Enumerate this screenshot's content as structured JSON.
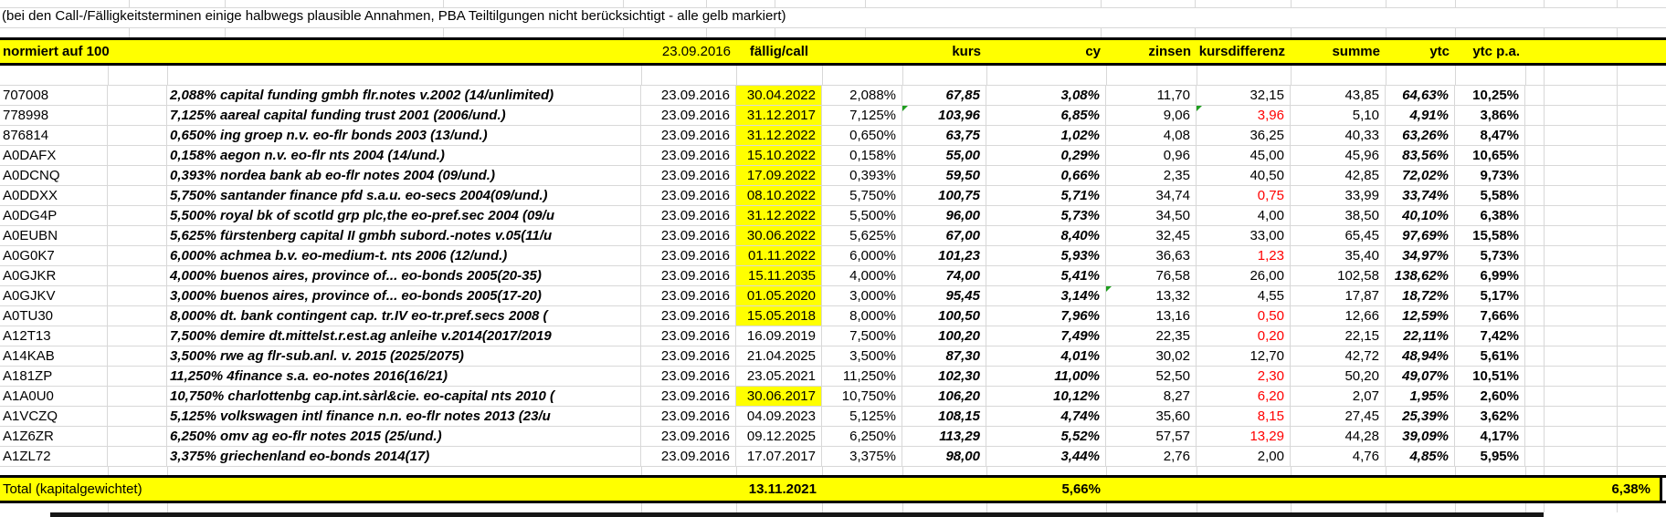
{
  "note": "(bei den Call-/Fälligkeitsterminen einige halbwegs plausible Annahmen, PBA Teiltilgungen nicht berücksichtigt  - alle gelb markiert)",
  "header": {
    "label": "normiert auf 100",
    "date": "23.09.2016",
    "faellig": "fällig/call",
    "kurs": "kurs",
    "cy": "cy",
    "zinsen": "zinsen",
    "kursdiff": "kursdifferenz",
    "summe": "summe",
    "ytc": "ytc",
    "ytc_pa": "ytc p.a."
  },
  "rows": [
    {
      "id": "707008",
      "name": "2,088% capital funding gmbh flr.notes v.2002 (14/unlimited)",
      "date": "23.09.2016",
      "faellig": "30.04.2022",
      "highlight": true,
      "coupon": "2,088%",
      "kurs": "67,85",
      "cy": "3,08%",
      "zinsen": "11,70",
      "kursdiff": "32,15",
      "negative": false,
      "summe": "43,85",
      "ytc": "64,63%",
      "ytc_pa": "10,25%",
      "indicators": []
    },
    {
      "id": "778998",
      "name": "7,125% aareal capital funding trust 2001 (2006/und.)",
      "date": "23.09.2016",
      "faellig": "31.12.2017",
      "highlight": true,
      "coupon": "7,125%",
      "kurs": "103,96",
      "cy": "6,85%",
      "zinsen": "9,06",
      "kursdiff": "3,96",
      "negative": true,
      "summe": "5,10",
      "ytc": "4,91%",
      "ytc_pa": "3,86%",
      "indicators": [
        "kurs",
        "kursdiff"
      ]
    },
    {
      "id": "876814",
      "name": "0,650% ing groep n.v. eo-flr bonds 2003 (13/und.)",
      "date": "23.09.2016",
      "faellig": "31.12.2022",
      "highlight": true,
      "coupon": "0,650%",
      "kurs": "63,75",
      "cy": "1,02%",
      "zinsen": "4,08",
      "kursdiff": "36,25",
      "negative": false,
      "summe": "40,33",
      "ytc": "63,26%",
      "ytc_pa": "8,47%",
      "indicators": []
    },
    {
      "id": "A0DAFX",
      "name": "0,158% aegon n.v. eo-flr nts 2004 (14/und.)",
      "date": "23.09.2016",
      "faellig": "15.10.2022",
      "highlight": true,
      "coupon": "0,158%",
      "kurs": "55,00",
      "cy": "0,29%",
      "zinsen": "0,96",
      "kursdiff": "45,00",
      "negative": false,
      "summe": "45,96",
      "ytc": "83,56%",
      "ytc_pa": "10,65%",
      "indicators": []
    },
    {
      "id": "A0DCNQ",
      "name": "0,393% nordea bank ab eo-flr notes 2004 (09/und.)",
      "date": "23.09.2016",
      "faellig": "17.09.2022",
      "highlight": true,
      "coupon": "0,393%",
      "kurs": "59,50",
      "cy": "0,66%",
      "zinsen": "2,35",
      "kursdiff": "40,50",
      "negative": false,
      "summe": "42,85",
      "ytc": "72,02%",
      "ytc_pa": "9,73%",
      "indicators": []
    },
    {
      "id": "A0DDXX",
      "name": "5,750% santander finance pfd s.a.u. eo-secs 2004(09/und.)",
      "date": "23.09.2016",
      "faellig": "08.10.2022",
      "highlight": true,
      "coupon": "5,750%",
      "kurs": "100,75",
      "cy": "5,71%",
      "zinsen": "34,74",
      "kursdiff": "0,75",
      "negative": true,
      "summe": "33,99",
      "ytc": "33,74%",
      "ytc_pa": "5,58%",
      "indicators": []
    },
    {
      "id": "A0DG4P",
      "name": "5,500% royal bk of scotld grp plc,the eo-pref.sec 2004 (09/u",
      "date": "23.09.2016",
      "faellig": "31.12.2022",
      "highlight": true,
      "coupon": "5,500%",
      "kurs": "96,00",
      "cy": "5,73%",
      "zinsen": "34,50",
      "kursdiff": "4,00",
      "negative": false,
      "summe": "38,50",
      "ytc": "40,10%",
      "ytc_pa": "6,38%",
      "indicators": []
    },
    {
      "id": "A0EUBN",
      "name": "5,625% fürstenberg capital II gmbh subord.-notes v.05(11/u",
      "date": "23.09.2016",
      "faellig": "30.06.2022",
      "highlight": true,
      "coupon": "5,625%",
      "kurs": "67,00",
      "cy": "8,40%",
      "zinsen": "32,45",
      "kursdiff": "33,00",
      "negative": false,
      "summe": "65,45",
      "ytc": "97,69%",
      "ytc_pa": "15,58%",
      "indicators": []
    },
    {
      "id": "A0G0K7",
      "name": "6,000% achmea b.v. eo-medium-t. nts 2006 (12/und.)",
      "date": "23.09.2016",
      "faellig": "01.11.2022",
      "highlight": true,
      "coupon": "6,000%",
      "kurs": "101,23",
      "cy": "5,93%",
      "zinsen": "36,63",
      "kursdiff": "1,23",
      "negative": true,
      "summe": "35,40",
      "ytc": "34,97%",
      "ytc_pa": "5,73%",
      "indicators": []
    },
    {
      "id": "A0GJKR",
      "name": "4,000% buenos aires, province of... eo-bonds 2005(20-35) ",
      "date": "23.09.2016",
      "faellig": "15.11.2035",
      "highlight": true,
      "coupon": "4,000%",
      "kurs": "74,00",
      "cy": "5,41%",
      "zinsen": "76,58",
      "kursdiff": "26,00",
      "negative": false,
      "summe": "102,58",
      "ytc": "138,62%",
      "ytc_pa": "6,99%",
      "indicators": []
    },
    {
      "id": "A0GJKV",
      "name": "3,000% buenos aires, province of... eo-bonds 2005(17-20) ",
      "date": "23.09.2016",
      "faellig": "01.05.2020",
      "highlight": true,
      "coupon": "3,000%",
      "kurs": "95,45",
      "cy": "3,14%",
      "zinsen": "13,32",
      "kursdiff": "4,55",
      "negative": false,
      "summe": "17,87",
      "ytc": "18,72%",
      "ytc_pa": "5,17%",
      "indicators": [
        "zinsen"
      ]
    },
    {
      "id": "A0TU30",
      "name": "8,000% dt. bank contingent cap. tr.IV eo-tr.pref.secs 2008 (",
      "date": "23.09.2016",
      "faellig": "15.05.2018",
      "highlight": true,
      "coupon": "8,000%",
      "kurs": "100,50",
      "cy": "7,96%",
      "zinsen": "13,16",
      "kursdiff": "0,50",
      "negative": true,
      "summe": "12,66",
      "ytc": "12,59%",
      "ytc_pa": "7,66%",
      "indicators": []
    },
    {
      "id": "A12T13",
      "name": "7,500% demire dt.mittelst.r.est.ag anleihe v.2014(2017/2019",
      "date": "23.09.2016",
      "faellig": "16.09.2019",
      "highlight": false,
      "coupon": "7,500%",
      "kurs": "100,20",
      "cy": "7,49%",
      "zinsen": "22,35",
      "kursdiff": "0,20",
      "negative": true,
      "summe": "22,15",
      "ytc": "22,11%",
      "ytc_pa": "7,42%",
      "indicators": []
    },
    {
      "id": "A14KAB",
      "name": "3,500% rwe ag flr-sub.anl. v. 2015 (2025/2075)",
      "date": "23.09.2016",
      "faellig": "21.04.2025",
      "highlight": false,
      "coupon": "3,500%",
      "kurs": "87,30",
      "cy": "4,01%",
      "zinsen": "30,02",
      "kursdiff": "12,70",
      "negative": false,
      "summe": "42,72",
      "ytc": "48,94%",
      "ytc_pa": "5,61%",
      "indicators": []
    },
    {
      "id": "A181ZP",
      "name": "11,250% 4finance s.a. eo-notes 2016(16/21)",
      "date": "23.09.2016",
      "faellig": "23.05.2021",
      "highlight": false,
      "coupon": "11,250%",
      "kurs": "102,30",
      "cy": "11,00%",
      "zinsen": "52,50",
      "kursdiff": "2,30",
      "negative": true,
      "summe": "50,20",
      "ytc": "49,07%",
      "ytc_pa": "10,51%",
      "indicators": []
    },
    {
      "id": "A1A0U0",
      "name": "10,750% charlottenbg cap.int.sàrl&cie. eo-capital nts 2010 (",
      "date": "23.09.2016",
      "faellig": "30.06.2017",
      "highlight": true,
      "coupon": "10,750%",
      "kurs": "106,20",
      "cy": "10,12%",
      "zinsen": "8,27",
      "kursdiff": "6,20",
      "negative": true,
      "summe": "2,07",
      "ytc": "1,95%",
      "ytc_pa": "2,60%",
      "indicators": []
    },
    {
      "id": "A1VCZQ",
      "name": "5,125% volkswagen intl finance n.n. eo-flr notes 2013 (23/u",
      "date": "23.09.2016",
      "faellig": "04.09.2023",
      "highlight": false,
      "coupon": "5,125%",
      "kurs": "108,15",
      "cy": "4,74%",
      "zinsen": "35,60",
      "kursdiff": "8,15",
      "negative": true,
      "summe": "27,45",
      "ytc": "25,39%",
      "ytc_pa": "3,62%",
      "indicators": []
    },
    {
      "id": "A1Z6ZR",
      "name": "6,250% omv ag eo-flr notes 2015 (25/und.)",
      "date": "23.09.2016",
      "faellig": "09.12.2025",
      "highlight": false,
      "coupon": "6,250%",
      "kurs": "113,29",
      "cy": "5,52%",
      "zinsen": "57,57",
      "kursdiff": "13,29",
      "negative": true,
      "summe": "44,28",
      "ytc": "39,09%",
      "ytc_pa": "4,17%",
      "indicators": []
    },
    {
      "id": "A1ZL72",
      "name": "3,375% griechenland eo-bonds 2014(17)",
      "date": "23.09.2016",
      "faellig": "17.07.2017",
      "highlight": false,
      "coupon": "3,375%",
      "kurs": "98,00",
      "cy": "3,44%",
      "zinsen": "2,76",
      "kursdiff": "2,00",
      "negative": false,
      "summe": "4,76",
      "ytc": "4,85%",
      "ytc_pa": "5,95%",
      "indicators": []
    }
  ],
  "total": {
    "label": "Total (kapitalgewichtet)",
    "faellig": "13.11.2021",
    "cy": "5,66%",
    "ytc_pa": "6,38%"
  },
  "colors": {
    "highlight": "#ffff00",
    "negative_value": "#ff0000",
    "error_indicator": "#1e9e1e"
  }
}
